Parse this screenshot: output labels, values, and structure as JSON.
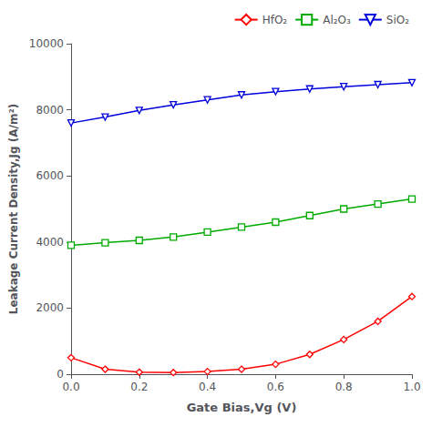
{
  "chart_data": {
    "type": "line",
    "x": [
      0.0,
      0.1,
      0.2,
      0.3,
      0.4,
      0.5,
      0.6,
      0.7,
      0.8,
      0.9,
      1.0
    ],
    "xlabel": "Gate Bias,Vg (V)",
    "ylabel": "Leakage Current Density,Jg (A/m²)",
    "series": [
      {
        "name": "HfO₂",
        "color": "#FF0000",
        "marker": "diamond",
        "values": [
          500,
          150,
          60,
          50,
          80,
          150,
          300,
          600,
          1050,
          1600,
          2350
        ]
      },
      {
        "name": "Al₂O₃",
        "color": "#00AA00",
        "marker": "square",
        "values": [
          3900,
          3980,
          4050,
          4150,
          4300,
          4450,
          4600,
          4800,
          5000,
          5150,
          5300
        ]
      },
      {
        "name": "SiO₂",
        "color": "#0000DD",
        "marker": "triangle_down",
        "values": [
          7600,
          7780,
          7980,
          8150,
          8300,
          8450,
          8550,
          8630,
          8700,
          8760,
          8820
        ]
      }
    ],
    "xlim": [
      0,
      1.0
    ],
    "ylim": [
      0,
      10000
    ],
    "xticks": [
      {
        "value": 0,
        "label": "0.0"
      },
      0.2,
      0.4,
      0.6,
      0.8,
      {
        "value": 1,
        "label": "1.0"
      }
    ],
    "yticks": [
      0,
      2000,
      4000,
      6000,
      8000,
      10000
    ],
    "grid": false,
    "legend": "upper right"
  }
}
